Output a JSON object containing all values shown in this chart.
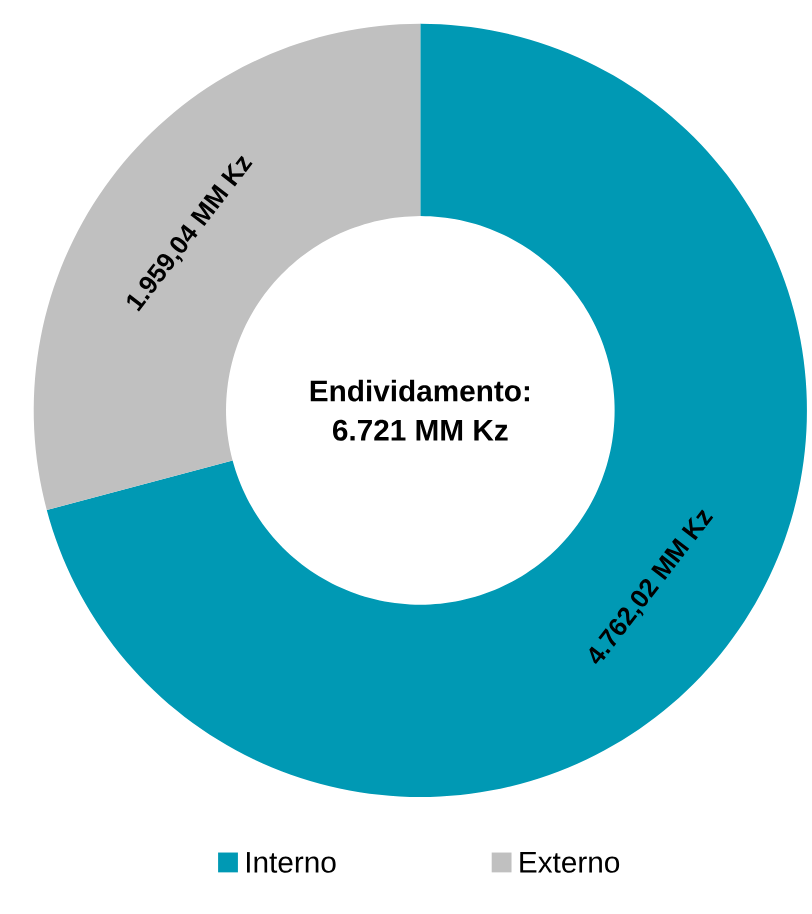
{
  "chart_data": {
    "type": "donut",
    "categories": [
      "Interno",
      "Externo"
    ],
    "values": [
      4762.02,
      1959.04
    ],
    "colors": [
      "#0099b4",
      "#c0c0c0"
    ],
    "value_labels": [
      "4.762,02 MM Kz",
      "1.959,04 MM Kz"
    ],
    "annotations": [
      "Endividamento:",
      "6.721 MM Kz"
    ],
    "legend": "bottom"
  }
}
